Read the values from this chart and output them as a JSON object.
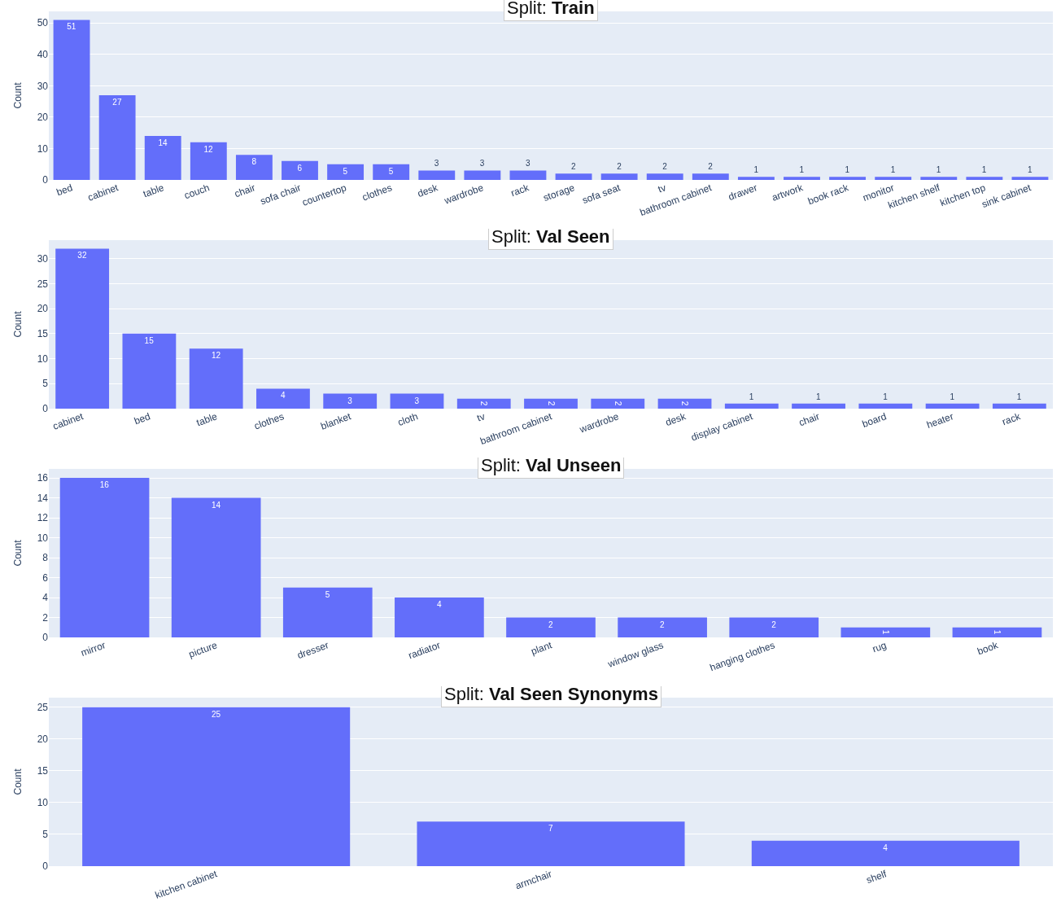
{
  "chart_data": [
    {
      "type": "bar",
      "title": "Split: Train",
      "ylabel": "Count",
      "categories": [
        "bed",
        "cabinet",
        "table",
        "couch",
        "chair",
        "sofa chair",
        "countertop",
        "clothes",
        "desk",
        "wardrobe",
        "rack",
        "storage",
        "sofa seat",
        "tv",
        "bathroom cabinet",
        "drawer",
        "artwork",
        "book rack",
        "monitor",
        "kitchen shelf",
        "kitchen top",
        "sink cabinet"
      ],
      "values": [
        51,
        27,
        14,
        12,
        8,
        6,
        5,
        5,
        3,
        3,
        3,
        2,
        2,
        2,
        2,
        1,
        1,
        1,
        1,
        1,
        1,
        1
      ],
      "color": "#636efa",
      "ylim": [
        0,
        53.7
      ],
      "yticks": [
        0,
        10,
        20,
        30,
        40,
        50
      ],
      "grid": "y",
      "data_labels": true
    },
    {
      "type": "bar",
      "title": "Split: Val Seen",
      "ylabel": "Count",
      "categories": [
        "cabinet",
        "bed",
        "table",
        "clothes",
        "blanket",
        "cloth",
        "tv",
        "bathroom cabinet",
        "wardrobe",
        "desk",
        "display cabinet",
        "chair",
        "board",
        "heater",
        "rack"
      ],
      "values": [
        32,
        15,
        12,
        4,
        3,
        3,
        2,
        2,
        2,
        2,
        1,
        1,
        1,
        1,
        1
      ],
      "color": "#636efa",
      "ylim": [
        0,
        33.7
      ],
      "yticks": [
        0,
        5,
        10,
        15,
        20,
        25,
        30
      ],
      "grid": "y",
      "data_labels": true
    },
    {
      "type": "bar",
      "title": "Split: Val Unseen",
      "ylabel": "Count",
      "categories": [
        "mirror",
        "picture",
        "dresser",
        "radiator",
        "plant",
        "window glass",
        "hanging clothes",
        "rug",
        "book"
      ],
      "values": [
        16,
        14,
        5,
        4,
        2,
        2,
        2,
        1,
        1
      ],
      "color": "#636efa",
      "ylim": [
        0,
        16.9
      ],
      "yticks": [
        0,
        2,
        4,
        6,
        8,
        10,
        12,
        14,
        16
      ],
      "grid": "y",
      "data_labels": true
    },
    {
      "type": "bar",
      "title": "Split: Val Seen Synonyms",
      "ylabel": "Count",
      "categories": [
        "kitchen cabinet",
        "armchair",
        "shelf"
      ],
      "values": [
        25,
        7,
        4
      ],
      "color": "#636efa",
      "ylim": [
        0,
        26.5
      ],
      "yticks": [
        0,
        5,
        10,
        15,
        20,
        25
      ],
      "grid": "y",
      "data_labels": true
    }
  ]
}
